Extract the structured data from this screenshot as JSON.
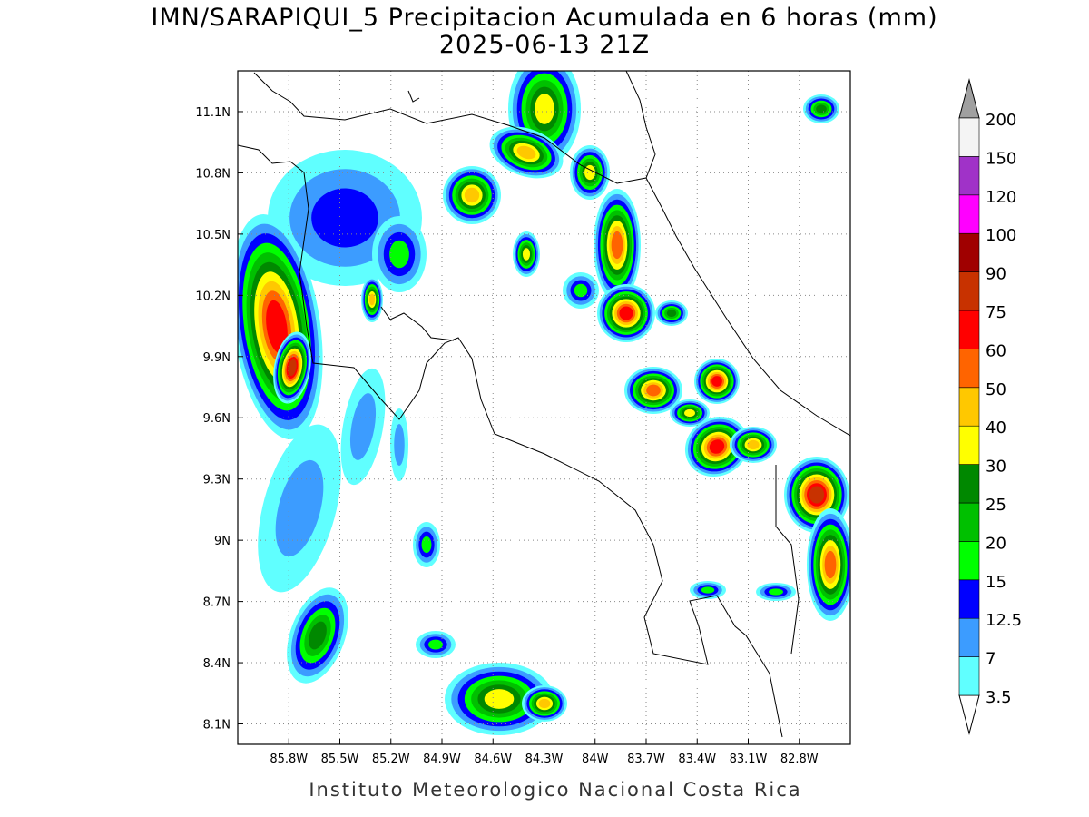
{
  "map": {
    "title": "IMN/SARAPIQUI_5 Precipitacion Acumulada en 6 horas (mm)",
    "subtitle": "2025-06-13 21Z",
    "footer": "Instituto Meteorologico Nacional Costa Rica",
    "xlim": [
      -86.1,
      -82.5
    ],
    "ylim": [
      8.0,
      11.3
    ],
    "grid": true,
    "xticks": [
      {
        "value": -85.8,
        "label": "85.8W"
      },
      {
        "value": -85.5,
        "label": "85.5W"
      },
      {
        "value": -85.2,
        "label": "85.2W"
      },
      {
        "value": -84.9,
        "label": "84.9W"
      },
      {
        "value": -84.6,
        "label": "84.6W"
      },
      {
        "value": -84.3,
        "label": "84.3W"
      },
      {
        "value": -84.0,
        "label": "84W"
      },
      {
        "value": -83.7,
        "label": "83.7W"
      },
      {
        "value": -83.4,
        "label": "83.4W"
      },
      {
        "value": -83.1,
        "label": "83.1W"
      },
      {
        "value": -82.8,
        "label": "82.8W"
      }
    ],
    "yticks": [
      {
        "value": 8.1,
        "label": "8.1N"
      },
      {
        "value": 8.4,
        "label": "8.4N"
      },
      {
        "value": 8.7,
        "label": "8.7N"
      },
      {
        "value": 9.0,
        "label": "9N"
      },
      {
        "value": 9.3,
        "label": "9.3N"
      },
      {
        "value": 9.6,
        "label": "9.6N"
      },
      {
        "value": 9.9,
        "label": "9.9N"
      },
      {
        "value": 10.2,
        "label": "10.2N"
      },
      {
        "value": 10.5,
        "label": "10.5N"
      },
      {
        "value": 10.8,
        "label": "10.8N"
      },
      {
        "value": 11.1,
        "label": "11.1N"
      }
    ],
    "colorbar": {
      "levels": [
        3.5,
        7,
        12.5,
        15,
        20,
        25,
        30,
        40,
        50,
        60,
        75,
        90,
        100,
        120,
        150,
        200
      ],
      "colors": [
        "#ffffff",
        "#60ffff",
        "#3c9cff",
        "#0000ff",
        "#00ff00",
        "#00c000",
        "#008800",
        "#ffff00",
        "#ffc800",
        "#ff6400",
        "#ff0000",
        "#c83200",
        "#a00000",
        "#ff00ff",
        "#a032c8",
        "#f4f4f4",
        "#a0a0a0"
      ]
    }
  }
}
